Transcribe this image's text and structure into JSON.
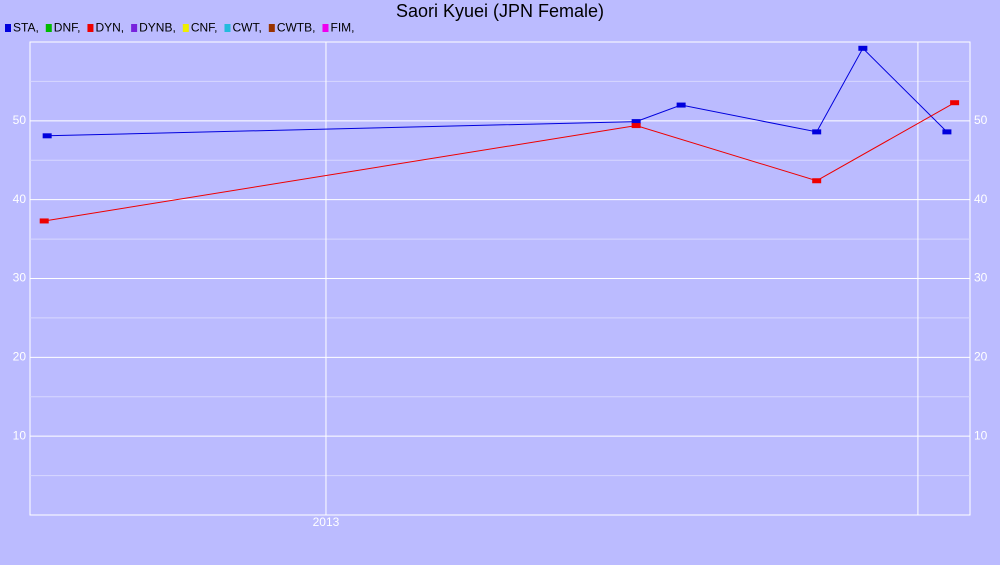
{
  "chart_data": {
    "type": "line",
    "title": "Saori Kyuei (JPN Female)",
    "series": [
      {
        "name": "STA,",
        "color": "#0000dd",
        "x": [
          2012.529,
          2013.524,
          2013.6,
          2013.829,
          2013.907,
          2014.049
        ],
        "values": [
          48.1,
          49.9,
          52.0,
          48.6,
          59.2,
          48.6
        ]
      },
      {
        "name": "DNF,",
        "color": "#00bb00",
        "x": [],
        "values": []
      },
      {
        "name": "DYN,",
        "color": "#ee0000",
        "x": [
          2012.524,
          2013.524,
          2013.829,
          2014.062
        ],
        "values": [
          37.3,
          49.4,
          42.4,
          52.3
        ]
      },
      {
        "name": "DYNB,",
        "color": "#7722dd",
        "x": [],
        "values": []
      },
      {
        "name": "CNF,",
        "color": "#eeee00",
        "x": [],
        "values": []
      },
      {
        "name": "CWT,",
        "color": "#22bbdd",
        "x": [],
        "values": []
      },
      {
        "name": "CWTB,",
        "color": "#993300",
        "x": [],
        "values": []
      },
      {
        "name": "FIM,",
        "color": "#ee00ee",
        "x": [],
        "values": []
      }
    ],
    "xlim": [
      2012.5,
      2014.088
    ],
    "xticks": [
      2013,
      {
        "value": 2014,
        "label": null
      }
    ],
    "ylim": [
      0,
      60
    ],
    "yticks": [
      10,
      20,
      30,
      40,
      50
    ],
    "yminor_ticks": [
      5,
      15,
      25,
      35,
      45,
      55
    ],
    "grid": true
  }
}
